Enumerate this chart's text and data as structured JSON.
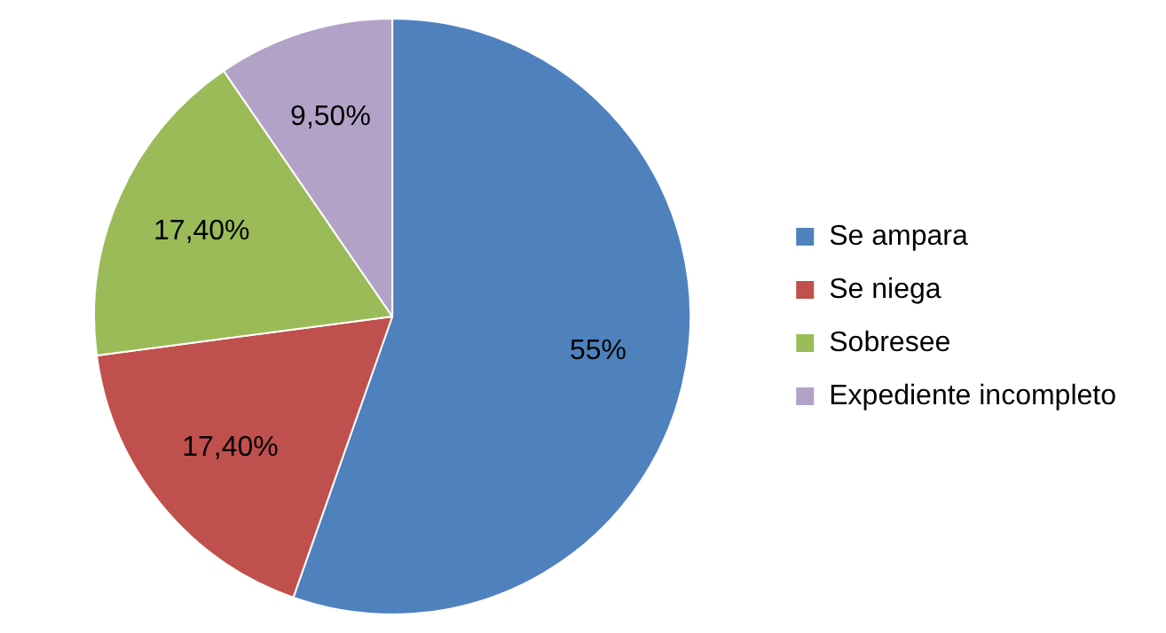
{
  "chart_data": {
    "type": "pie",
    "categories": [
      "Se ampara",
      "Se niega",
      "Sobresee",
      "Expediente incompleto"
    ],
    "values": [
      55,
      17.4,
      17.4,
      9.5
    ],
    "colors": [
      "#4f81bd",
      "#c0504d",
      "#9bbb59",
      "#b3a2c7"
    ],
    "value_labels": [
      "55%",
      "17,40%",
      "17,40%",
      "9,50%"
    ],
    "legend": "right"
  }
}
